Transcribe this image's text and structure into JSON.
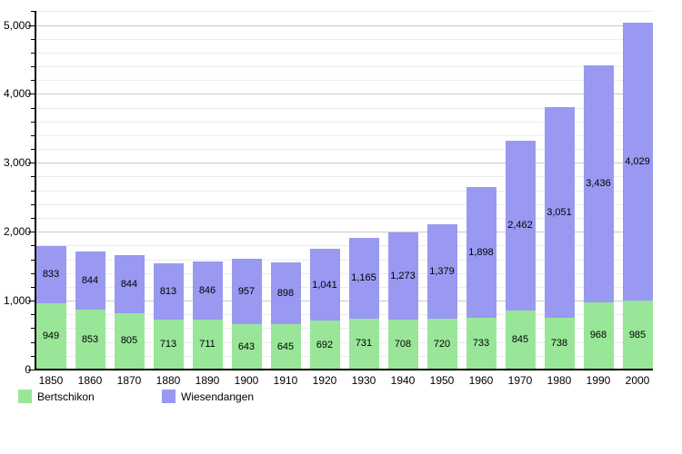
{
  "chart_data": {
    "type": "bar",
    "stacked": true,
    "title": "",
    "xlabel": "",
    "ylabel": "",
    "categories": [
      "1850",
      "1860",
      "1870",
      "1880",
      "1890",
      "1900",
      "1910",
      "1920",
      "1930",
      "1940",
      "1950",
      "1960",
      "1970",
      "1980",
      "1990",
      "2000"
    ],
    "series": [
      {
        "name": "Bertschikon",
        "color": "#99e699",
        "values": [
          949,
          853,
          805,
          713,
          711,
          643,
          645,
          692,
          731,
          708,
          720,
          733,
          845,
          738,
          968,
          985
        ]
      },
      {
        "name": "Wiesendangen",
        "color": "#9999f2",
        "values": [
          833,
          844,
          844,
          813,
          846,
          957,
          898,
          1041,
          1165,
          1273,
          1379,
          1898,
          2462,
          3051,
          3436,
          4029
        ]
      }
    ],
    "ylim": [
      0,
      5200
    ],
    "y_ticks_major": [
      0,
      1000,
      2000,
      3000,
      4000,
      5000
    ],
    "y_tick_minor_step": 200,
    "grid": true,
    "value_labels": true,
    "value_label_format": "thousands-comma",
    "legend_position": "bottom-left"
  }
}
